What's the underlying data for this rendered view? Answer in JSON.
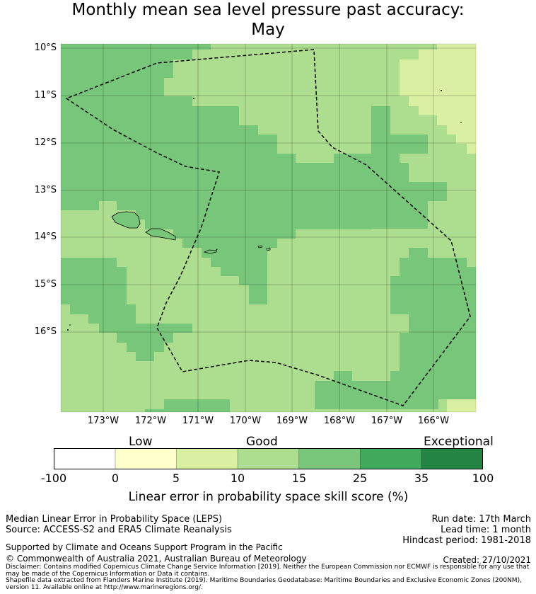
{
  "title": {
    "line1": "Monthly mean sea level pressure past accuracy:",
    "line2": "May"
  },
  "map": {
    "lat_labels": [
      "10°S",
      "11°S",
      "12°S",
      "13°S",
      "14°S",
      "15°S",
      "16°S"
    ],
    "lon_labels": [
      "173°W",
      "172°W",
      "171°W",
      "170°W",
      "169°W",
      "168°W",
      "167°W",
      "166°W"
    ]
  },
  "colorbar": {
    "category_labels": [
      "Low",
      "Good",
      "Exceptional"
    ],
    "tick_labels": [
      "-100",
      "0",
      "5",
      "10",
      "15",
      "25",
      "35",
      "100"
    ],
    "colors": [
      "#ffffff",
      "#ffffcc",
      "#d9f0a3",
      "#addd8e",
      "#78c679",
      "#41ab5d",
      "#238443"
    ],
    "title": "Linear error in probability space skill score (%)"
  },
  "footer": {
    "metric": "Median Linear Error in Probability Space (LEPS)",
    "source": "Source: ACCESS-S2 and ERA5 Climate Reanalysis",
    "supported": "Supported by Climate and Oceans Support Program in the Pacific",
    "copyright": "© Commonwealth of Australia 2021, Australian Bureau of Meteorology",
    "disclaimer": "Disclaimer: Contains modified Copernicus Climate Change Service Information [2019]. Neither the European Commission nor ECMWF is responsible for any use that may be made of the Copernicus Information or Data it contains.",
    "shapefile": "Shapefile data extracted from Flanders Marine Institute (2019). Maritime Boundaries Geodatabase: Maritime Boundaries and Exclusive Economic Zones (200NM), version 11. Available online at http://www.marineregions.org/.",
    "run_date": "Run date: 17th March",
    "lead_time": "Lead time: 1 month",
    "hindcast": "Hindcast period: 1981-2018",
    "created": "Created: 27/10/2021"
  },
  "legend_colors": {
    "c5_10": "#d9f0a3",
    "c10_15": "#addd8e",
    "c15_25": "#78c679"
  }
}
